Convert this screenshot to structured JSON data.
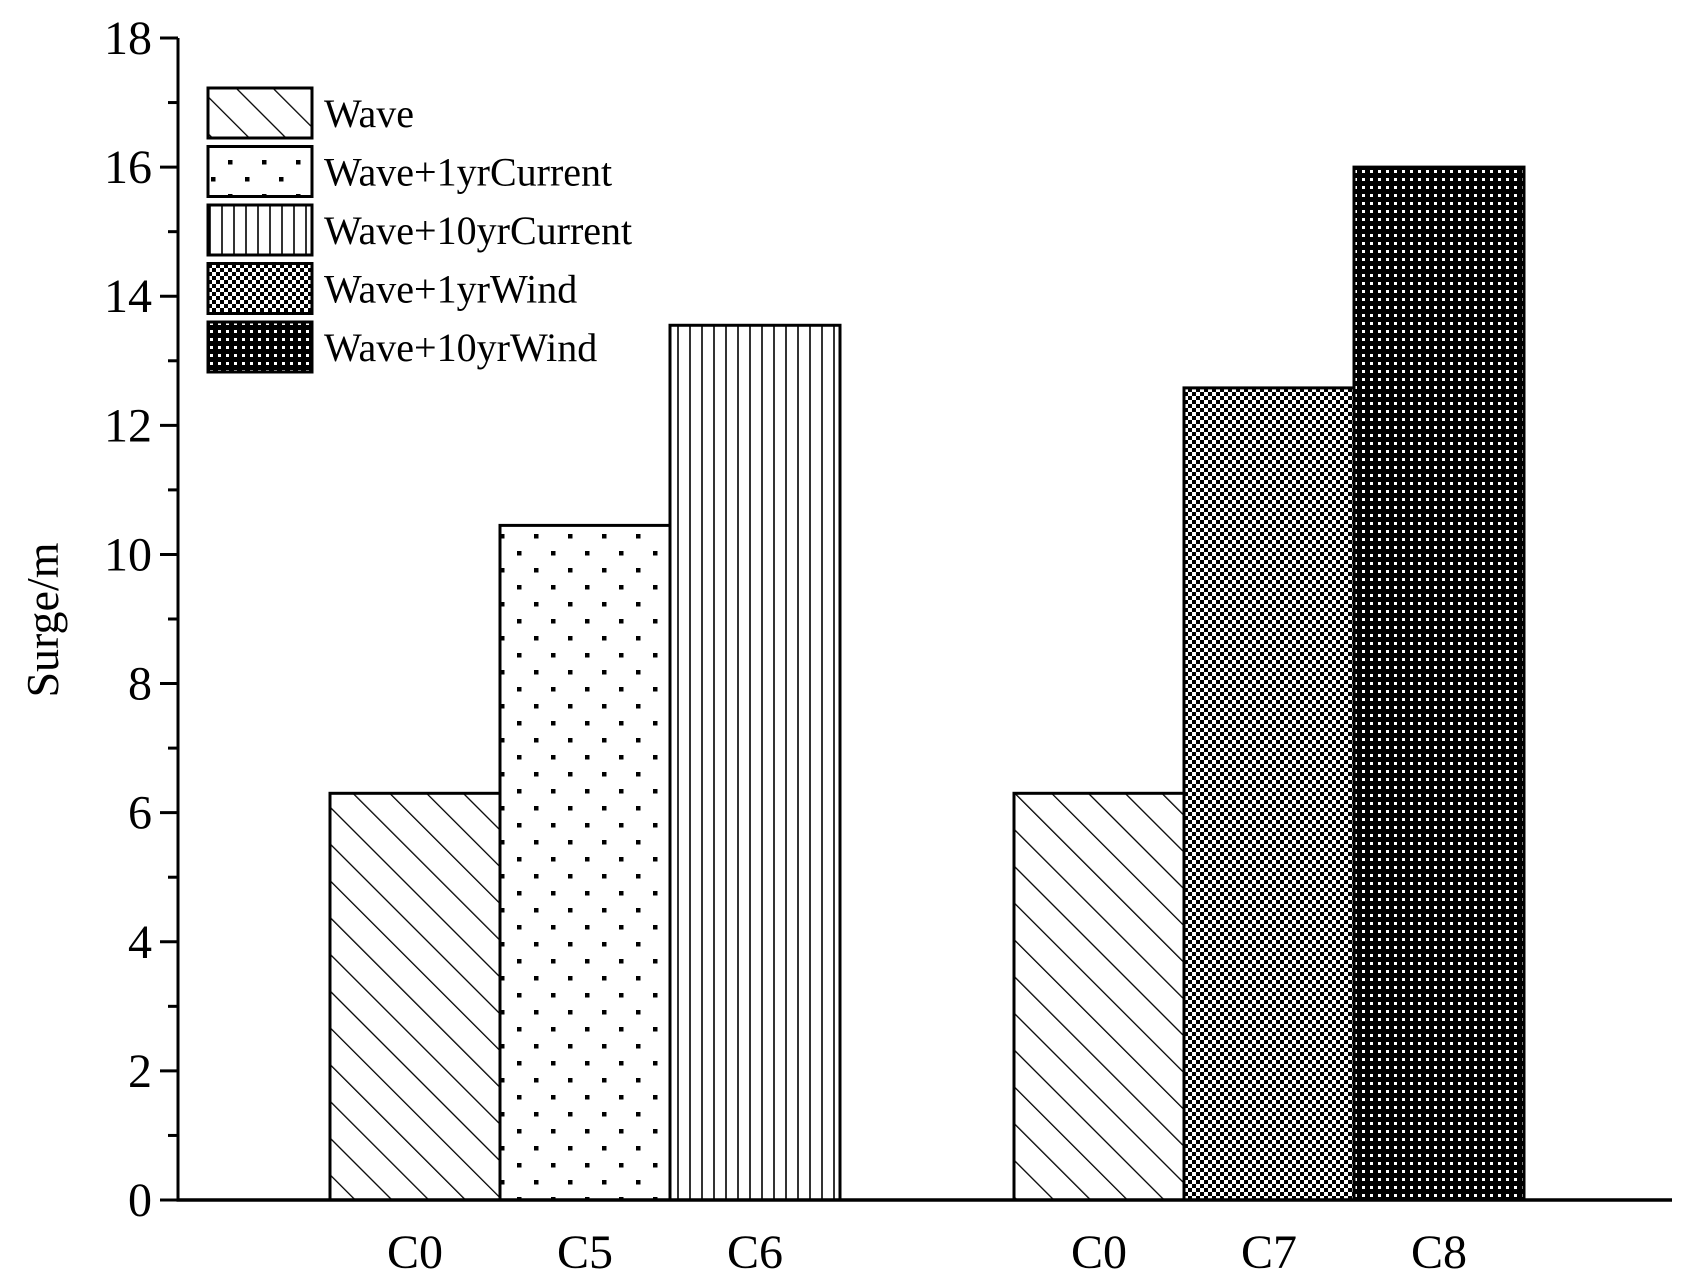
{
  "chart_data": {
    "type": "bar",
    "title": "",
    "xlabel": "",
    "ylabel": "Surge/m",
    "ylim": [
      0,
      18
    ],
    "yticks": [
      0,
      2,
      4,
      6,
      8,
      10,
      12,
      14,
      16,
      18
    ],
    "legend_position": "top-left",
    "grid": false,
    "series": [
      {
        "name": "Wave",
        "pattern": "diagonal-hatch"
      },
      {
        "name": "Wave+1yrCurrent",
        "pattern": "sparse-dots"
      },
      {
        "name": "Wave+10yrCurrent",
        "pattern": "vertical-lines"
      },
      {
        "name": "Wave+1yrWind",
        "pattern": "checker"
      },
      {
        "name": "Wave+10yrWind",
        "pattern": "dense-checker"
      }
    ],
    "bars": [
      {
        "category": "C0",
        "series": "Wave",
        "value": 6.3
      },
      {
        "category": "C5",
        "series": "Wave+1yrCurrent",
        "value": 10.45
      },
      {
        "category": "C6",
        "series": "Wave+10yrCurrent",
        "value": 13.55
      },
      {
        "category": "C0",
        "series": "Wave",
        "value": 6.3
      },
      {
        "category": "C7",
        "series": "Wave+1yrWind",
        "value": 12.58
      },
      {
        "category": "C8",
        "series": "Wave+10yrWind",
        "value": 16.0
      }
    ],
    "colors": {
      "line": "#000000",
      "background": "#ffffff"
    }
  }
}
